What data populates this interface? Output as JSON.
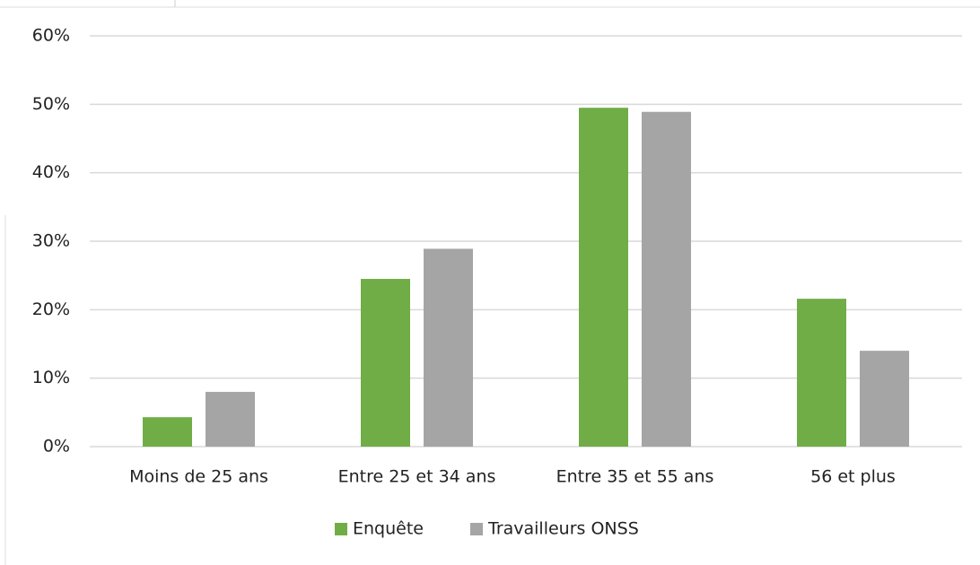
{
  "chart_data": {
    "type": "bar",
    "categories": [
      "Moins de 25 ans",
      "Entre 25 et 34 ans",
      "Entre 35 et 55 ans",
      "56 et plus"
    ],
    "series": [
      {
        "name": "Enquête",
        "color": "#70ad47",
        "values": [
          4.3,
          24.5,
          49.5,
          21.6
        ]
      },
      {
        "name": "Travailleurs ONSS",
        "color": "#a5a5a5",
        "values": [
          8.0,
          28.9,
          48.9,
          14.0
        ]
      }
    ],
    "ylim": [
      0,
      60
    ],
    "yticks": [
      {
        "value": 0,
        "label": "0%"
      },
      {
        "value": 10,
        "label": "10%"
      },
      {
        "value": 20,
        "label": "20%"
      },
      {
        "value": 30,
        "label": "30%"
      },
      {
        "value": 40,
        "label": "40%"
      },
      {
        "value": 50,
        "label": "50%"
      },
      {
        "value": 60,
        "label": "60%"
      }
    ],
    "grid": true,
    "legend": "bottom"
  }
}
